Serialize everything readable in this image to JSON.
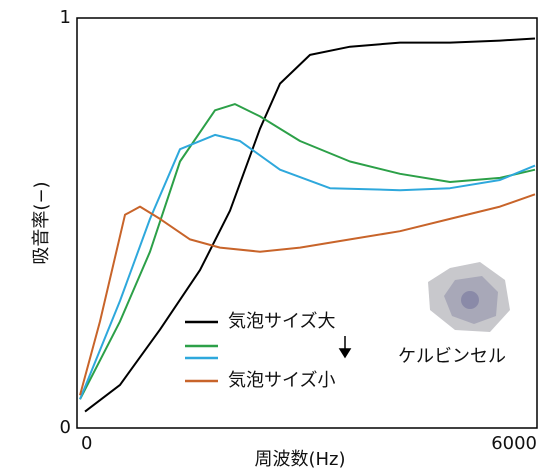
{
  "chart_data": {
    "type": "line",
    "x_label": "周波数(Hz)",
    "y_label": "吸音率(−)",
    "annotation": "ケルビンセル",
    "xlim": [
      0,
      6000
    ],
    "xticks": [
      0,
      6000
    ],
    "ylim": [
      0,
      1
    ],
    "yticks": [
      0,
      1
    ],
    "grid": false,
    "series": [
      {
        "name": "気泡サイズ大",
        "color": "#000000",
        "x": [
          104,
          561,
          1083,
          1604,
          1996,
          2387,
          2648,
          3039,
          3561,
          4213,
          4865,
          5517,
          5974
        ],
        "values": [
          0.04,
          0.105,
          0.24,
          0.385,
          0.53,
          0.73,
          0.84,
          0.91,
          0.93,
          0.94,
          0.94,
          0.945,
          0.95
        ]
      },
      {
        "color": "#2ca048",
        "x": [
          39,
          561,
          952,
          1343,
          1800,
          2061,
          2387,
          2909,
          3561,
          4213,
          4865,
          5517,
          5974
        ],
        "values": [
          0.07,
          0.26,
          0.43,
          0.65,
          0.775,
          0.79,
          0.76,
          0.7,
          0.65,
          0.62,
          0.6,
          0.61,
          0.63
        ]
      },
      {
        "color": "#2ea8dc",
        "x": [
          39,
          561,
          952,
          1343,
          1800,
          2126,
          2648,
          3300,
          4213,
          4865,
          5517,
          5974
        ],
        "values": [
          0.07,
          0.31,
          0.51,
          0.68,
          0.715,
          0.7,
          0.63,
          0.585,
          0.58,
          0.585,
          0.605,
          0.64
        ]
      },
      {
        "name": "気泡サイズ小",
        "color": "#c8642a",
        "x": [
          39,
          300,
          626,
          822,
          1083,
          1474,
          1865,
          2387,
          2909,
          3561,
          4213,
          4865,
          5517,
          5974
        ],
        "values": [
          0.08,
          0.26,
          0.52,
          0.54,
          0.51,
          0.46,
          0.44,
          0.43,
          0.44,
          0.46,
          0.48,
          0.51,
          0.54,
          0.57
        ]
      }
    ]
  }
}
